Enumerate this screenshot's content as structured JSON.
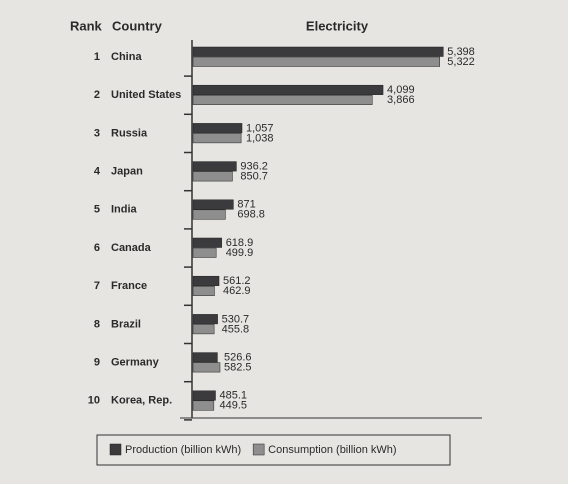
{
  "chart_data": {
    "type": "bar",
    "orientation": "horizontal",
    "title": "Electricity",
    "rank_header": "Rank",
    "country_header": "Country",
    "ranks": [
      1,
      2,
      3,
      4,
      5,
      6,
      7,
      8,
      9,
      10
    ],
    "categories": [
      "China",
      "United States",
      "Russia",
      "Japan",
      "India",
      "Canada",
      "France",
      "Brazil",
      "Germany",
      "Korea, Rep."
    ],
    "series": [
      {
        "name": "Production (billion kWh)",
        "color": "#3b3b3d",
        "values": [
          5398,
          4099,
          1057,
          936.2,
          871,
          618.9,
          561.2,
          530.7,
          526.6,
          485.1
        ],
        "value_labels": [
          "5,398",
          "4,099",
          "1,057",
          "936.2",
          "871",
          "618.9",
          "561.2",
          "530.7",
          "526.6",
          "485.1"
        ]
      },
      {
        "name": "Consumption (billion kWh)",
        "color": "#8e8e8e",
        "values": [
          5322,
          3866,
          1038,
          850.7,
          698.8,
          499.9,
          462.9,
          455.8,
          582.5,
          449.5
        ],
        "value_labels": [
          "5,322",
          "3,866",
          "1,038",
          "850.7",
          "698.8",
          "499.9",
          "462.9",
          "455.8",
          "582.5",
          "449.5"
        ]
      }
    ],
    "xlim": [
      0,
      5500
    ],
    "legend": "bottom"
  }
}
